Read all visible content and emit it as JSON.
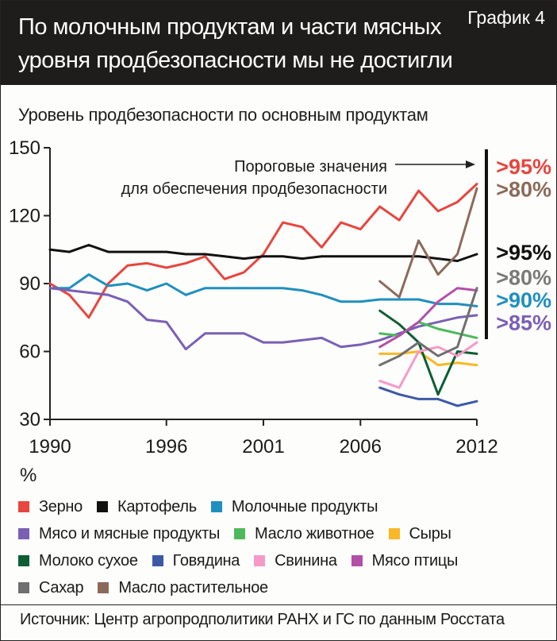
{
  "header": {
    "title_line1": "По молочным продуктам и части мясных",
    "title_line2": "уровня продбезопасности мы не достигли",
    "tag": "График 4"
  },
  "subtitle": "Уровень продбезопасности по основным продуктам",
  "unit_label": "%",
  "annotation": {
    "line1": "Пороговые значения",
    "line2": "для обеспечения продбезопасности"
  },
  "thresholds": [
    {
      "label": ">95%",
      "color": "#e8453e",
      "at": 142
    },
    {
      "label": ">80%",
      "color": "#8c6a5a",
      "at": 132
    },
    {
      "label": ">95%",
      "color": "#111111",
      "at": 104
    },
    {
      "label": ">80%",
      "color": "#7a7a7a",
      "at": 93
    },
    {
      "label": ">90%",
      "color": "#1f8fbf",
      "at": 83
    },
    {
      "label": ">85%",
      "color": "#7a5fb5",
      "at": 73
    }
  ],
  "source": "Источник: Центр агропродполитики РАНХ и ГС по данным Росстата",
  "chart_data": {
    "type": "line",
    "xlim": [
      1990,
      2012
    ],
    "ylim": [
      30,
      150
    ],
    "yticks": [
      30,
      60,
      90,
      120,
      150
    ],
    "xticks": [
      1990,
      1996,
      2001,
      2006,
      2012
    ],
    "grid": false,
    "series": [
      {
        "name": "Зерно",
        "color": "#e8453e",
        "x": [
          1990,
          1991,
          1992,
          1993,
          1994,
          1995,
          1996,
          1997,
          1998,
          1999,
          2000,
          2001,
          2002,
          2003,
          2004,
          2005,
          2006,
          2007,
          2008,
          2009,
          2010,
          2011,
          2012
        ],
        "values": [
          90,
          85,
          75,
          90,
          98,
          99,
          97,
          99,
          102,
          92,
          95,
          103,
          117,
          115,
          106,
          117,
          114,
          124,
          118,
          131,
          122,
          126,
          134
        ]
      },
      {
        "name": "Картофель",
        "color": "#111111",
        "x": [
          1990,
          1991,
          1992,
          1993,
          1994,
          1995,
          1996,
          1997,
          1998,
          1999,
          2000,
          2001,
          2002,
          2003,
          2004,
          2005,
          2006,
          2007,
          2008,
          2009,
          2010,
          2011,
          2012
        ],
        "values": [
          105,
          104,
          107,
          104,
          104,
          104,
          104,
          103,
          103,
          102,
          101,
          102,
          102,
          101,
          102,
          102,
          102,
          102,
          102,
          102,
          101,
          100,
          103
        ]
      },
      {
        "name": "Молочные продукты",
        "color": "#1f8fbf",
        "x": [
          1990,
          1991,
          1992,
          1993,
          1994,
          1995,
          1996,
          1997,
          1998,
          1999,
          2000,
          2001,
          2002,
          2003,
          2004,
          2005,
          2006,
          2007,
          2008,
          2009,
          2010,
          2011,
          2012
        ],
        "values": [
          88,
          88,
          94,
          89,
          90,
          87,
          90,
          85,
          88,
          88,
          88,
          88,
          88,
          87,
          85,
          82,
          82,
          83,
          83,
          83,
          81,
          81,
          80
        ]
      },
      {
        "name": "Мясо и мясные продукты",
        "color": "#7a5fb5",
        "x": [
          1990,
          1991,
          1992,
          1993,
          1994,
          1995,
          1996,
          1997,
          1998,
          1999,
          2000,
          2001,
          2002,
          2003,
          2004,
          2005,
          2006,
          2007,
          2008,
          2009,
          2010,
          2011,
          2012
        ],
        "values": [
          88,
          87,
          86,
          85,
          82,
          74,
          73,
          61,
          68,
          68,
          68,
          64,
          64,
          65,
          66,
          62,
          63,
          65,
          68,
          71,
          73,
          75,
          76
        ]
      },
      {
        "name": "Масло животное",
        "color": "#4cba5a",
        "x": [
          2007,
          2008,
          2009,
          2010,
          2011,
          2012
        ],
        "values": [
          68,
          67,
          73,
          70,
          68,
          66
        ]
      },
      {
        "name": "Сыры",
        "color": "#f9b825",
        "x": [
          2007,
          2008,
          2009,
          2010,
          2011,
          2012
        ],
        "values": [
          59,
          59,
          60,
          54,
          55,
          54
        ]
      },
      {
        "name": "Молоко сухое",
        "color": "#0c5e34",
        "x": [
          2007,
          2008,
          2009,
          2010,
          2011,
          2012
        ],
        "values": [
          78,
          72,
          64,
          41,
          60,
          59
        ]
      },
      {
        "name": "Говядина",
        "color": "#3c59a8",
        "x": [
          2007,
          2008,
          2009,
          2010,
          2011,
          2012
        ],
        "values": [
          44,
          41,
          39,
          39,
          36,
          38
        ]
      },
      {
        "name": "Свинина",
        "color": "#f59ac8",
        "x": [
          2007,
          2008,
          2009,
          2010,
          2011,
          2012
        ],
        "values": [
          47,
          44,
          60,
          62,
          58,
          64
        ]
      },
      {
        "name": "Мясо птицы",
        "color": "#b34fa8",
        "x": [
          2007,
          2008,
          2009,
          2010,
          2011,
          2012
        ],
        "values": [
          62,
          67,
          73,
          82,
          88,
          87
        ]
      },
      {
        "name": "Сахар",
        "color": "#6f6f6f",
        "x": [
          2007,
          2008,
          2009,
          2010,
          2011,
          2012
        ],
        "values": [
          54,
          58,
          64,
          58,
          62,
          88
        ]
      },
      {
        "name": "Масло растительное",
        "color": "#8c6a5a",
        "x": [
          2007,
          2008,
          2009,
          2010,
          2011,
          2012
        ],
        "values": [
          91,
          84,
          109,
          94,
          103,
          132
        ]
      }
    ]
  }
}
